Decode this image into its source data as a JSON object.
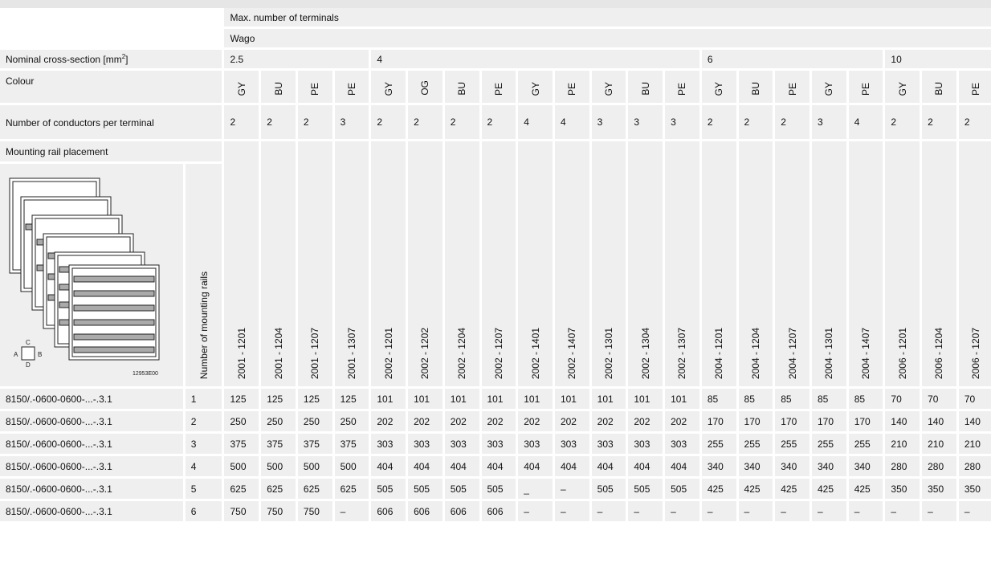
{
  "header": {
    "max_terminals": "Max. number of terminals",
    "brand": "Wago"
  },
  "labels": {
    "cross_section": "Nominal cross-section [mm",
    "cross_section_sup": "2",
    "cross_section_end": "]",
    "colour": "Colour",
    "conductors": "Number of conductors per terminal",
    "rail_placement": "Mounting rail placement",
    "num_rails": "Number of mounting rails"
  },
  "figure": {
    "code": "12953E00",
    "side_a": "A",
    "side_b": "B",
    "side_c": "C",
    "side_d": "D"
  },
  "cross_sections": [
    "2.5",
    "4",
    "6",
    "10"
  ],
  "colours": [
    "GY",
    "BU",
    "PE",
    "PE",
    "GY",
    "OG",
    "BU",
    "PE",
    "GY",
    "PE",
    "GY",
    "BU",
    "PE",
    "GY",
    "BU",
    "PE",
    "GY",
    "PE",
    "GY",
    "BU",
    "PE"
  ],
  "conductors": [
    "2",
    "2",
    "2",
    "3",
    "2",
    "2",
    "2",
    "2",
    "4",
    "4",
    "3",
    "3",
    "3",
    "2",
    "2",
    "2",
    "3",
    "4",
    "2",
    "2",
    "2"
  ],
  "part_numbers": [
    "2001 - 1201",
    "2001 - 1204",
    "2001 - 1207",
    "2001 - 1307",
    "2002 - 1201",
    "2002 - 1202",
    "2002 - 1204",
    "2002 - 1207",
    "2002 - 1401",
    "2002 - 1407",
    "2002 - 1301",
    "2002 - 1304",
    "2002 - 1307",
    "2004 - 1201",
    "2004 - 1204",
    "2004 - 1207",
    "2004 - 1301",
    "2004 - 1407",
    "2006 - 1201",
    "2006 - 1204",
    "2006 - 1207"
  ],
  "rows": [
    {
      "model": "8150/.-0600-0600-...-.3.1",
      "rails": "1",
      "values": [
        "125",
        "125",
        "125",
        "125",
        "101",
        "101",
        "101",
        "101",
        "101",
        "101",
        "101",
        "101",
        "101",
        "85",
        "85",
        "85",
        "85",
        "85",
        "70",
        "70",
        "70"
      ]
    },
    {
      "model": "8150/.-0600-0600-...-.3.1",
      "rails": "2",
      "values": [
        "250",
        "250",
        "250",
        "250",
        "202",
        "202",
        "202",
        "202",
        "202",
        "202",
        "202",
        "202",
        "202",
        "170",
        "170",
        "170",
        "170",
        "170",
        "140",
        "140",
        "140"
      ]
    },
    {
      "model": "8150/.-0600-0600-...-.3.1",
      "rails": "3",
      "values": [
        "375",
        "375",
        "375",
        "375",
        "303",
        "303",
        "303",
        "303",
        "303",
        "303",
        "303",
        "303",
        "303",
        "255",
        "255",
        "255",
        "255",
        "255",
        "210",
        "210",
        "210"
      ]
    },
    {
      "model": "8150/.-0600-0600-...-.3.1",
      "rails": "4",
      "values": [
        "500",
        "500",
        "500",
        "500",
        "404",
        "404",
        "404",
        "404",
        "404",
        "404",
        "404",
        "404",
        "404",
        "340",
        "340",
        "340",
        "340",
        "340",
        "280",
        "280",
        "280"
      ]
    },
    {
      "model": "8150/.-0600-0600-...-.3.1",
      "rails": "5",
      "values": [
        "625",
        "625",
        "625",
        "625",
        "505",
        "505",
        "505",
        "505",
        "_",
        "–",
        "505",
        "505",
        "505",
        "425",
        "425",
        "425",
        "425",
        "425",
        "350",
        "350",
        "350"
      ]
    },
    {
      "model": "8150/.-0600-0600-...-.3.1",
      "rails": "6",
      "values": [
        "750",
        "750",
        "750",
        "–",
        "606",
        "606",
        "606",
        "606",
        "–",
        "–",
        "–",
        "–",
        "–",
        "–",
        "–",
        "–",
        "–",
        "–",
        "–",
        "–",
        "–"
      ]
    }
  ]
}
